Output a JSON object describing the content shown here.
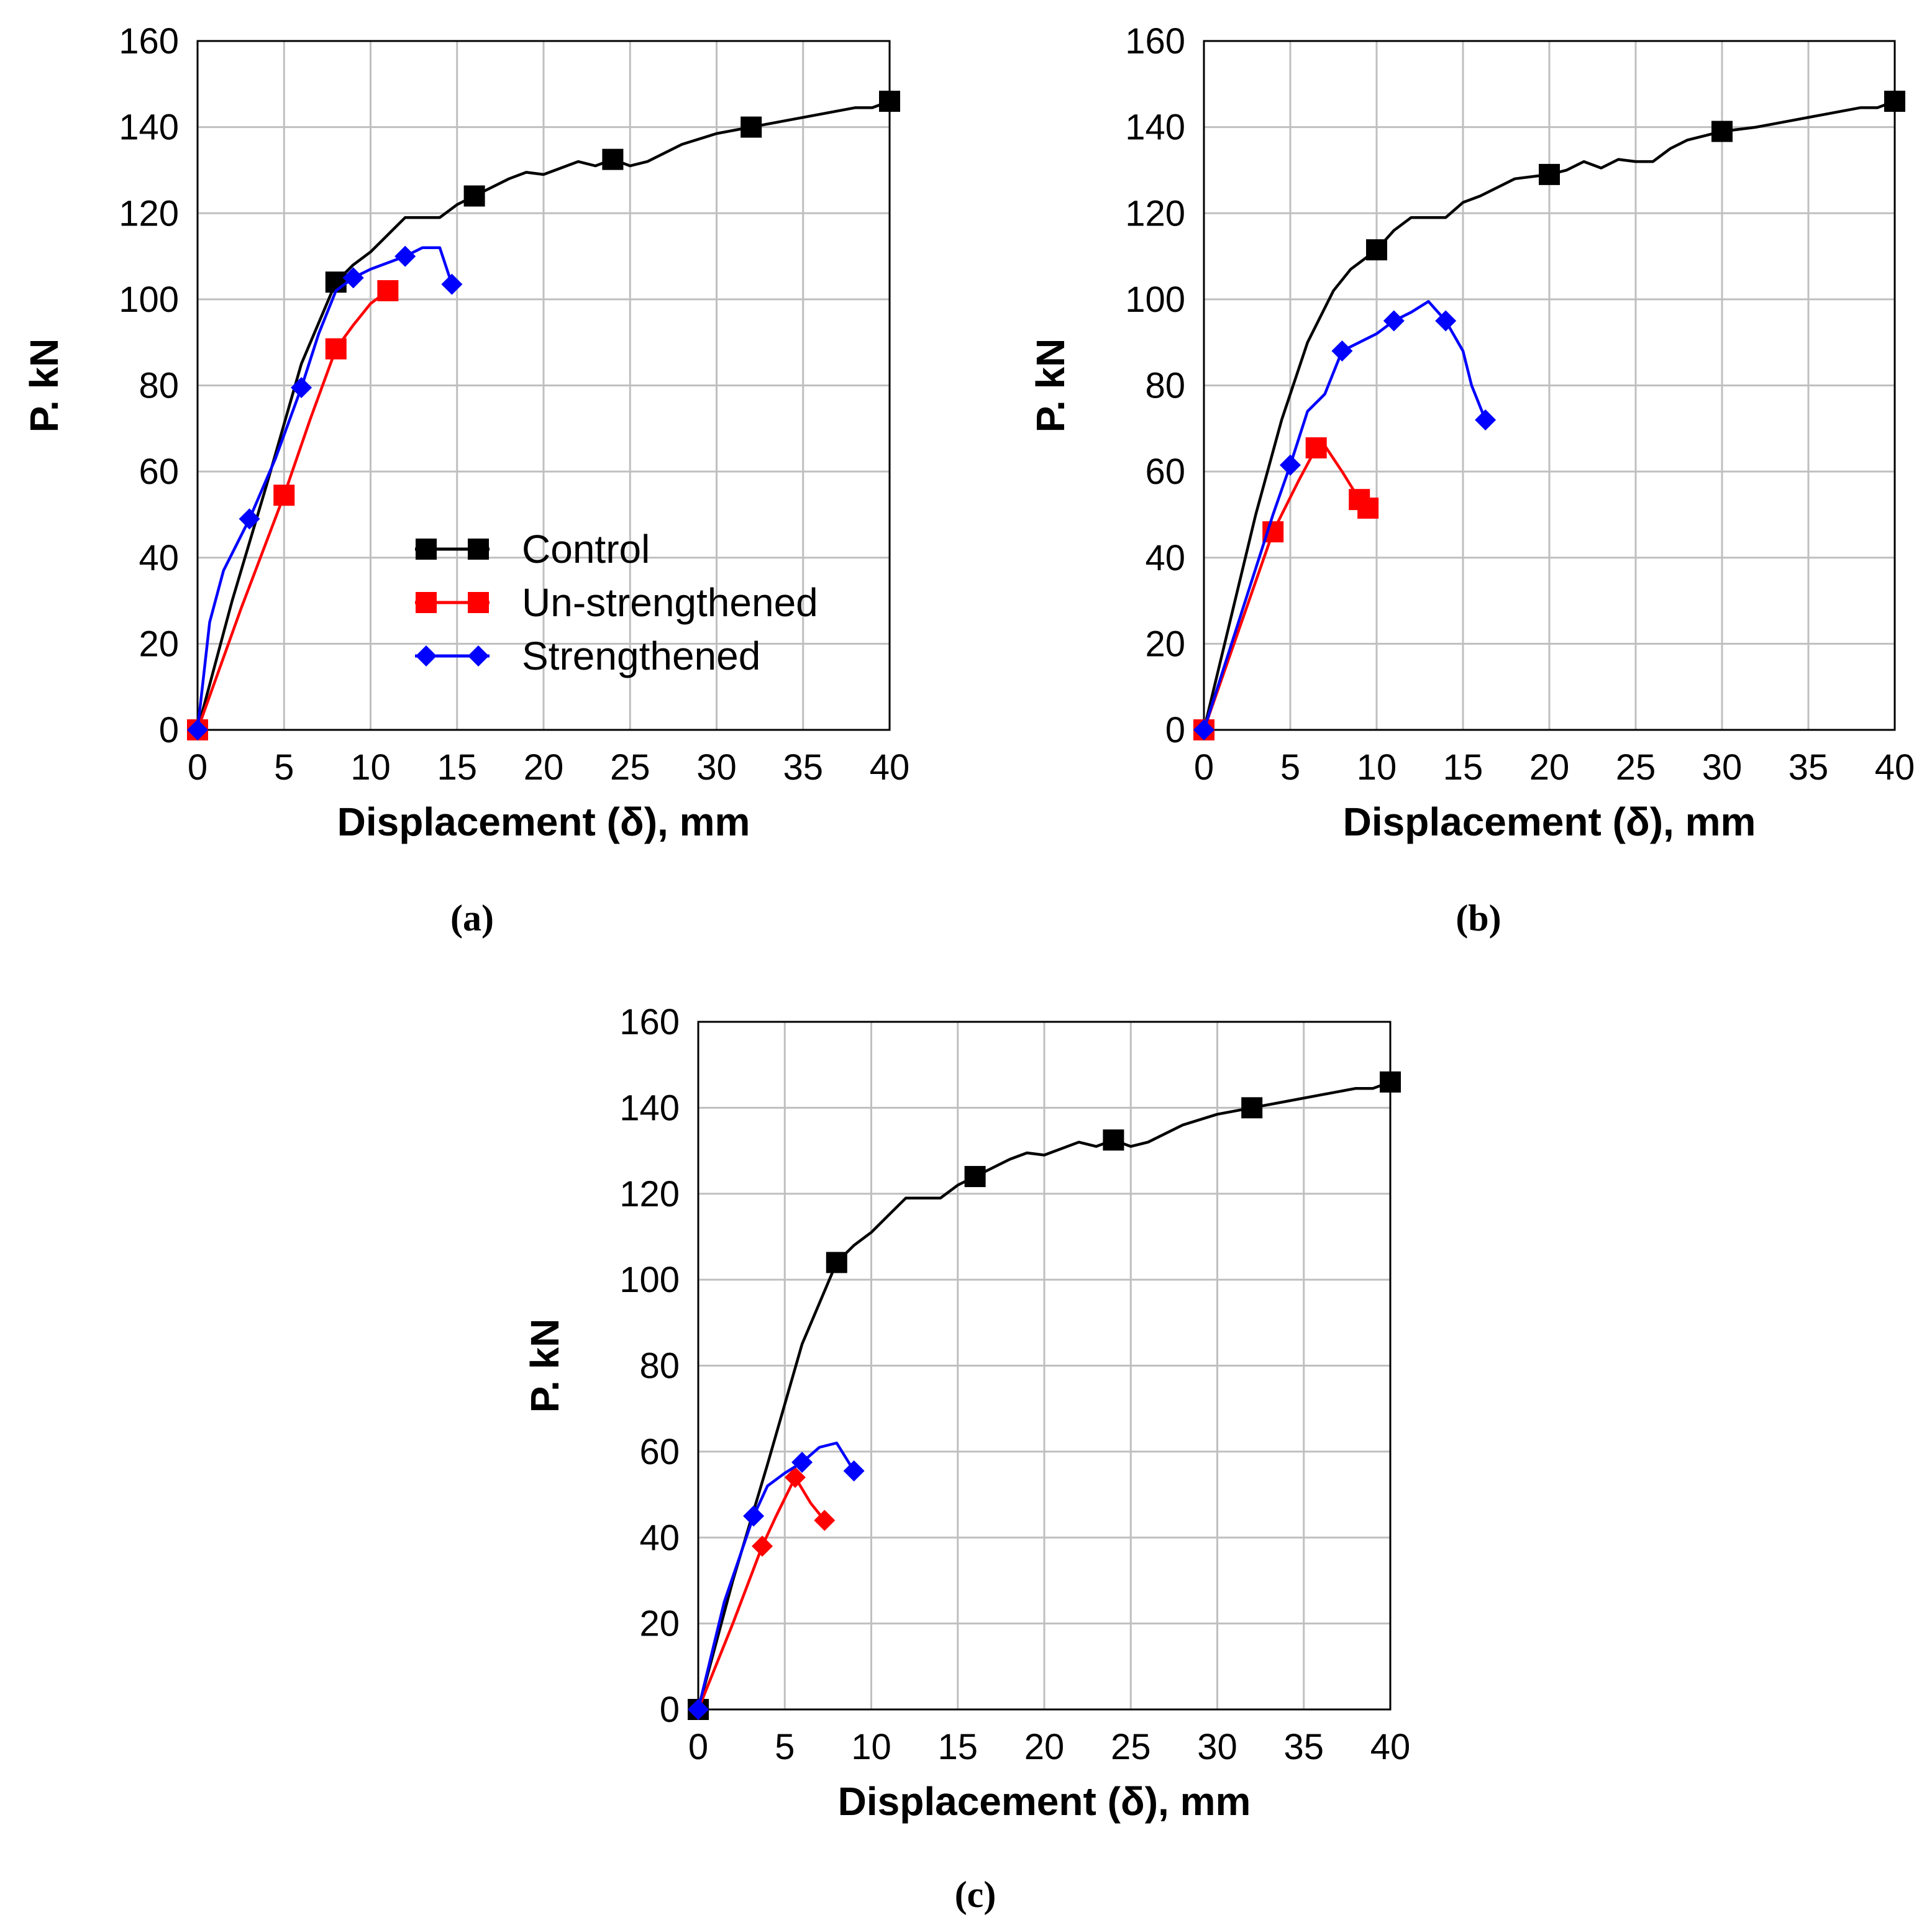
{
  "chart_data": [
    {
      "type": "line",
      "panel_label": "(a)",
      "xlabel": "Displacement (δ), mm",
      "ylabel": "P. kN",
      "xlim": [
        0,
        40
      ],
      "ylim": [
        0,
        160
      ],
      "xticks": [
        0,
        5,
        10,
        15,
        20,
        25,
        30,
        35,
        40
      ],
      "yticks": [
        0,
        20,
        40,
        60,
        80,
        100,
        120,
        140,
        160
      ],
      "grid": true,
      "legend": {
        "placement": "center",
        "entries": [
          {
            "label": "Control",
            "color": "#000000",
            "marker": "square"
          },
          {
            "label": "Un-strengthened",
            "color": "#ff0000",
            "marker": "square"
          },
          {
            "label": "Strengthened",
            "color": "#0000ff",
            "marker": "diamond"
          }
        ]
      },
      "series": [
        {
          "name": "Control",
          "color": "#000000",
          "marker": "square",
          "points": [
            [
              0,
              0
            ],
            [
              2,
              30
            ],
            [
              4,
              57
            ],
            [
              6,
              85
            ],
            [
              8,
              104
            ],
            [
              9,
              108
            ],
            [
              10,
              111
            ],
            [
              11,
              115
            ],
            [
              12,
              119
            ],
            [
              14,
              119
            ],
            [
              15,
              122
            ],
            [
              16,
              124
            ],
            [
              18,
              128
            ],
            [
              19,
              129.5
            ],
            [
              20,
              129
            ],
            [
              22,
              132
            ],
            [
              23,
              131
            ],
            [
              24,
              132.5
            ],
            [
              25,
              131
            ],
            [
              26,
              132
            ],
            [
              28,
              136
            ],
            [
              30,
              138.5
            ],
            [
              32,
              140
            ],
            [
              34,
              141.5
            ],
            [
              36,
              143
            ],
            [
              38,
              144.5
            ],
            [
              39,
              144.5
            ],
            [
              40,
              146
            ]
          ],
          "markers": [
            [
              0,
              0
            ],
            [
              8,
              104
            ],
            [
              16,
              124
            ],
            [
              24,
              132.5
            ],
            [
              32,
              140
            ],
            [
              40,
              146
            ]
          ]
        },
        {
          "name": "Un-strengthened",
          "color": "#ff0000",
          "marker": "square",
          "points": [
            [
              0,
              0
            ],
            [
              2.5,
              28
            ],
            [
              5,
              54.5
            ],
            [
              6.5,
              72
            ],
            [
              8,
              88.5
            ],
            [
              9,
              94
            ],
            [
              10,
              99
            ],
            [
              11,
              102
            ]
          ],
          "markers": [
            [
              0,
              0
            ],
            [
              5,
              54.5
            ],
            [
              8,
              88.5
            ],
            [
              11,
              102
            ]
          ]
        },
        {
          "name": "Strengthened",
          "color": "#0000ff",
          "marker": "diamond",
          "points": [
            [
              0,
              0
            ],
            [
              0.7,
              25
            ],
            [
              1.5,
              37
            ],
            [
              3,
              49
            ],
            [
              4.5,
              63
            ],
            [
              6,
              79.5
            ],
            [
              7,
              92
            ],
            [
              8,
              102
            ],
            [
              9,
              105
            ],
            [
              10,
              107
            ],
            [
              11,
              108.5
            ],
            [
              12,
              110
            ],
            [
              13,
              112
            ],
            [
              14,
              112
            ],
            [
              14.7,
              103.5
            ]
          ],
          "markers": [
            [
              0,
              0
            ],
            [
              3,
              49
            ],
            [
              6,
              79.5
            ],
            [
              9,
              105
            ],
            [
              12,
              110
            ],
            [
              14.7,
              103.5
            ]
          ]
        }
      ]
    },
    {
      "type": "line",
      "panel_label": "(b)",
      "xlabel": "Displacement (δ), mm",
      "ylabel": "P. kN",
      "xlim": [
        0,
        40
      ],
      "ylim": [
        0,
        160
      ],
      "xticks": [
        0,
        5,
        10,
        15,
        20,
        25,
        30,
        35,
        40
      ],
      "yticks": [
        0,
        20,
        40,
        60,
        80,
        100,
        120,
        140,
        160
      ],
      "grid": true,
      "series": [
        {
          "name": "Control",
          "color": "#000000",
          "marker": "square",
          "points": [
            [
              0,
              0
            ],
            [
              1.5,
              25
            ],
            [
              3,
              50
            ],
            [
              4.5,
              72
            ],
            [
              6,
              90
            ],
            [
              7.5,
              102
            ],
            [
              8.5,
              107
            ],
            [
              10,
              111.5
            ],
            [
              11,
              116
            ],
            [
              12,
              119
            ],
            [
              14,
              119
            ],
            [
              15,
              122.5
            ],
            [
              16,
              124
            ],
            [
              18,
              128
            ],
            [
              20,
              129
            ],
            [
              21,
              130
            ],
            [
              22,
              132
            ],
            [
              23,
              130.5
            ],
            [
              24,
              132.5
            ],
            [
              25,
              132
            ],
            [
              26,
              132
            ],
            [
              27,
              135
            ],
            [
              28,
              137
            ],
            [
              30,
              139
            ],
            [
              32,
              140
            ],
            [
              34,
              141.5
            ],
            [
              36,
              143
            ],
            [
              38,
              144.5
            ],
            [
              39,
              144.5
            ],
            [
              40,
              146
            ]
          ],
          "markers": [
            [
              0,
              0
            ],
            [
              10,
              111.5
            ],
            [
              20,
              129
            ],
            [
              30,
              139
            ],
            [
              40,
              146
            ]
          ]
        },
        {
          "name": "Un-strengthened",
          "color": "#ff0000",
          "marker": "square",
          "points": [
            [
              0,
              0
            ],
            [
              2,
              23
            ],
            [
              4,
              46
            ],
            [
              5.5,
              58
            ],
            [
              6.5,
              65.5
            ],
            [
              7,
              66
            ],
            [
              8,
              60
            ],
            [
              9,
              53.5
            ],
            [
              9.5,
              51.5
            ]
          ],
          "markers": [
            [
              0,
              0
            ],
            [
              4,
              46
            ],
            [
              6.5,
              65.5
            ],
            [
              9,
              53.5
            ],
            [
              9.5,
              51.5
            ]
          ]
        },
        {
          "name": "Strengthened",
          "color": "#0000ff",
          "marker": "diamond",
          "points": [
            [
              0,
              0
            ],
            [
              2,
              25
            ],
            [
              4,
              50
            ],
            [
              5,
              61.5
            ],
            [
              6,
              74
            ],
            [
              7,
              78
            ],
            [
              8,
              88
            ],
            [
              9,
              90
            ],
            [
              10,
              92
            ],
            [
              11,
              95
            ],
            [
              12,
              97
            ],
            [
              13,
              99.5
            ],
            [
              14,
              95
            ],
            [
              15,
              88
            ],
            [
              15.5,
              80
            ],
            [
              16.3,
              72
            ]
          ],
          "markers": [
            [
              0,
              0
            ],
            [
              5,
              61.5
            ],
            [
              8,
              88
            ],
            [
              11,
              95
            ],
            [
              14,
              95
            ],
            [
              16.3,
              72
            ]
          ]
        }
      ]
    },
    {
      "type": "line",
      "panel_label": "(c)",
      "xlabel": "Displacement (δ), mm",
      "ylabel": "P. kN",
      "xlim": [
        0,
        40
      ],
      "ylim": [
        0,
        160
      ],
      "xticks": [
        0,
        5,
        10,
        15,
        20,
        25,
        30,
        35,
        40
      ],
      "yticks": [
        0,
        20,
        40,
        60,
        80,
        100,
        120,
        140,
        160
      ],
      "grid": true,
      "series": [
        {
          "name": "Control",
          "color": "#000000",
          "marker": "square",
          "points": [
            [
              0,
              0
            ],
            [
              2,
              30
            ],
            [
              4,
              57
            ],
            [
              6,
              85
            ],
            [
              8,
              104
            ],
            [
              9,
              108
            ],
            [
              10,
              111
            ],
            [
              11,
              115
            ],
            [
              12,
              119
            ],
            [
              14,
              119
            ],
            [
              15,
              122
            ],
            [
              16,
              124
            ],
            [
              18,
              128
            ],
            [
              19,
              129.5
            ],
            [
              20,
              129
            ],
            [
              22,
              132
            ],
            [
              23,
              131
            ],
            [
              24,
              132.5
            ],
            [
              25,
              131
            ],
            [
              26,
              132
            ],
            [
              28,
              136
            ],
            [
              30,
              138.5
            ],
            [
              32,
              140
            ],
            [
              34,
              141.5
            ],
            [
              36,
              143
            ],
            [
              38,
              144.5
            ],
            [
              39,
              144.5
            ],
            [
              40,
              146
            ]
          ],
          "markers": [
            [
              0,
              0
            ],
            [
              8,
              104
            ],
            [
              16,
              124
            ],
            [
              24,
              132.5
            ],
            [
              32,
              140
            ],
            [
              40,
              146
            ]
          ]
        },
        {
          "name": "Un-strengthened",
          "color": "#ff0000",
          "marker": "diamond",
          "points": [
            [
              0,
              0
            ],
            [
              2,
              20
            ],
            [
              3.7,
              38
            ],
            [
              4.5,
              45
            ],
            [
              5.6,
              54
            ],
            [
              6.5,
              48
            ],
            [
              7.3,
              44
            ]
          ],
          "markers": [
            [
              0,
              0
            ],
            [
              3.7,
              38
            ],
            [
              5.6,
              54
            ],
            [
              7.3,
              44
            ]
          ]
        },
        {
          "name": "Strengthened",
          "color": "#0000ff",
          "marker": "diamond",
          "points": [
            [
              0,
              0
            ],
            [
              1.5,
              25
            ],
            [
              3.2,
              45
            ],
            [
              4,
              52
            ],
            [
              5,
              55
            ],
            [
              6,
              57.5
            ],
            [
              7,
              61
            ],
            [
              8,
              62
            ],
            [
              9,
              55.5
            ]
          ],
          "markers": [
            [
              0,
              0
            ],
            [
              3.2,
              45
            ],
            [
              6,
              57.5
            ],
            [
              9,
              55.5
            ]
          ]
        }
      ]
    }
  ]
}
